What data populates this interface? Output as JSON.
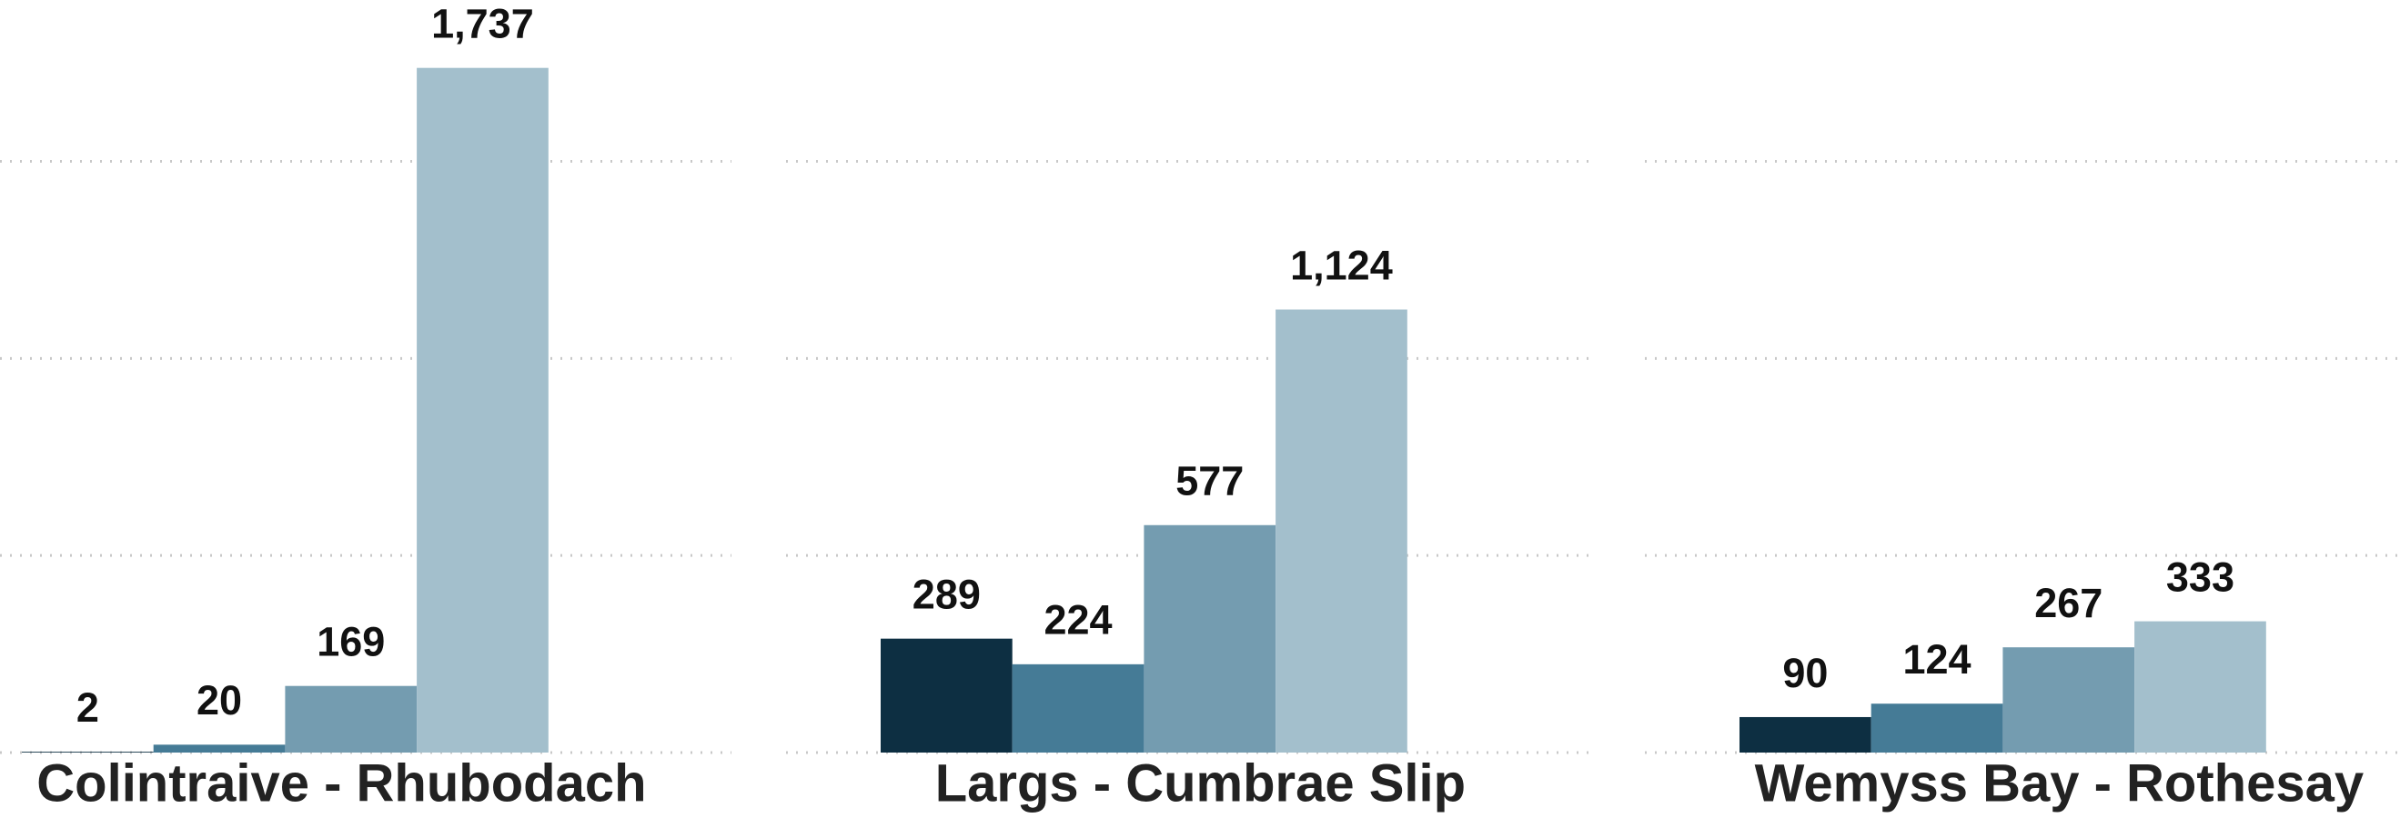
{
  "chart_data": {
    "type": "bar",
    "categories": [
      "Colintraive - Rhubodach",
      "Largs - Cumbrae Slip",
      "Wemyss Bay - Rothesay"
    ],
    "series": [
      {
        "color": "#0d2f42",
        "values": [
          2,
          289,
          90
        ],
        "value_labels": [
          "2",
          "289",
          "90"
        ]
      },
      {
        "color": "#457b96",
        "values": [
          20,
          224,
          124
        ],
        "value_labels": [
          "20",
          "224",
          "124"
        ]
      },
      {
        "color": "#749cb0",
        "values": [
          169,
          577,
          267
        ],
        "value_labels": [
          "169",
          "577",
          "267"
        ]
      },
      {
        "color": "#a3bfcc",
        "values": [
          1737,
          1124,
          333
        ],
        "value_labels": [
          "1,737",
          "1,124",
          "333"
        ]
      }
    ],
    "ylim": [
      0,
      1900
    ],
    "yticks": [
      0,
      500,
      1000,
      1500
    ],
    "grid": true
  }
}
